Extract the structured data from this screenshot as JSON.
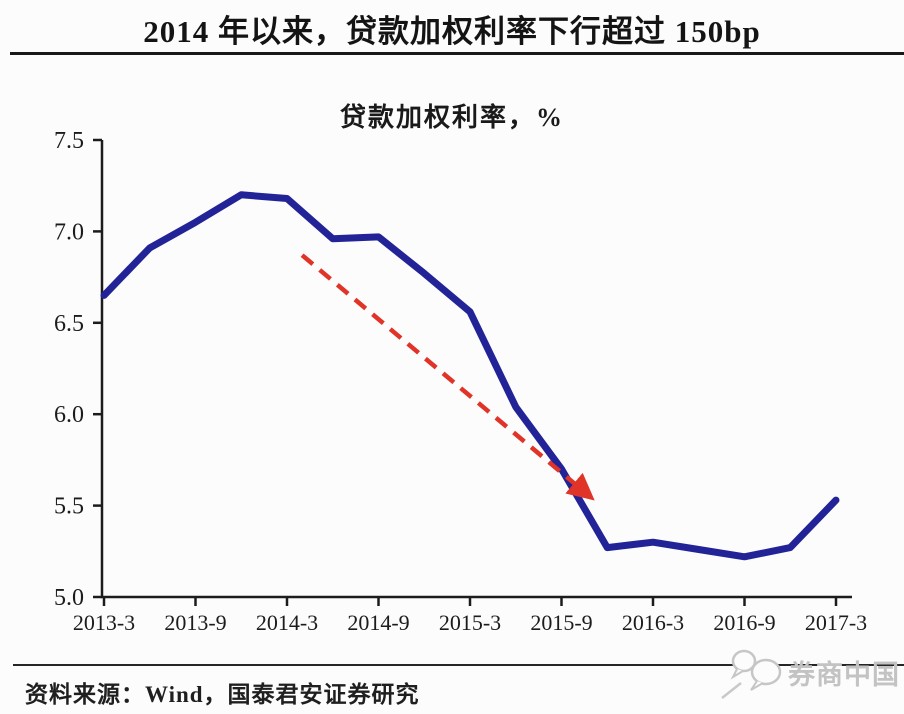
{
  "page": {
    "title": "2014 年以来，贷款加权利率下行超过 150bp",
    "source_note": "资料来源：Wind，国泰君安证券研究",
    "watermark_text": "券商中国",
    "colors": {
      "line": "#232398",
      "arrow": "#e03428",
      "axis": "#1c1c1c",
      "watermark": "#c6c6c6"
    }
  },
  "chart_data": {
    "type": "line",
    "title": "贷款加权利率，%",
    "x": [
      "2013-3",
      "2013-6",
      "2013-9",
      "2013-12",
      "2014-3",
      "2014-6",
      "2014-9",
      "2014-12",
      "2015-3",
      "2015-6",
      "2015-9",
      "2015-12",
      "2016-3",
      "2016-6",
      "2016-9",
      "2016-12",
      "2017-3"
    ],
    "series": [
      {
        "name": "贷款加权利率",
        "values": [
          6.65,
          6.91,
          7.05,
          7.2,
          7.18,
          6.96,
          6.97,
          6.77,
          6.56,
          6.04,
          5.7,
          5.27,
          5.3,
          5.26,
          5.22,
          5.27,
          5.53
        ],
        "color": "#232398"
      }
    ],
    "x_tick_indices": [
      0,
      2,
      4,
      6,
      8,
      10,
      12,
      14,
      16
    ],
    "x_tick_labels": [
      "2013-3",
      "2013-9",
      "2014-3",
      "2014-9",
      "2015-3",
      "2015-9",
      "2016-3",
      "2016-9",
      "2017-3"
    ],
    "y_ticks": [
      5.0,
      5.5,
      6.0,
      6.5,
      7.0,
      7.5
    ],
    "y_tick_labels": [
      "5.0",
      "5.5",
      "6.0",
      "6.5",
      "7.0",
      "7.5"
    ],
    "ylim": [
      5.0,
      7.5
    ],
    "grid": false,
    "legend_position": "none",
    "annotation": {
      "type": "dashed-arrow",
      "color": "#e03428",
      "from": {
        "x_index": 4.33,
        "value": 6.87
      },
      "to": {
        "x_index": 10.62,
        "value": 5.55
      }
    }
  }
}
